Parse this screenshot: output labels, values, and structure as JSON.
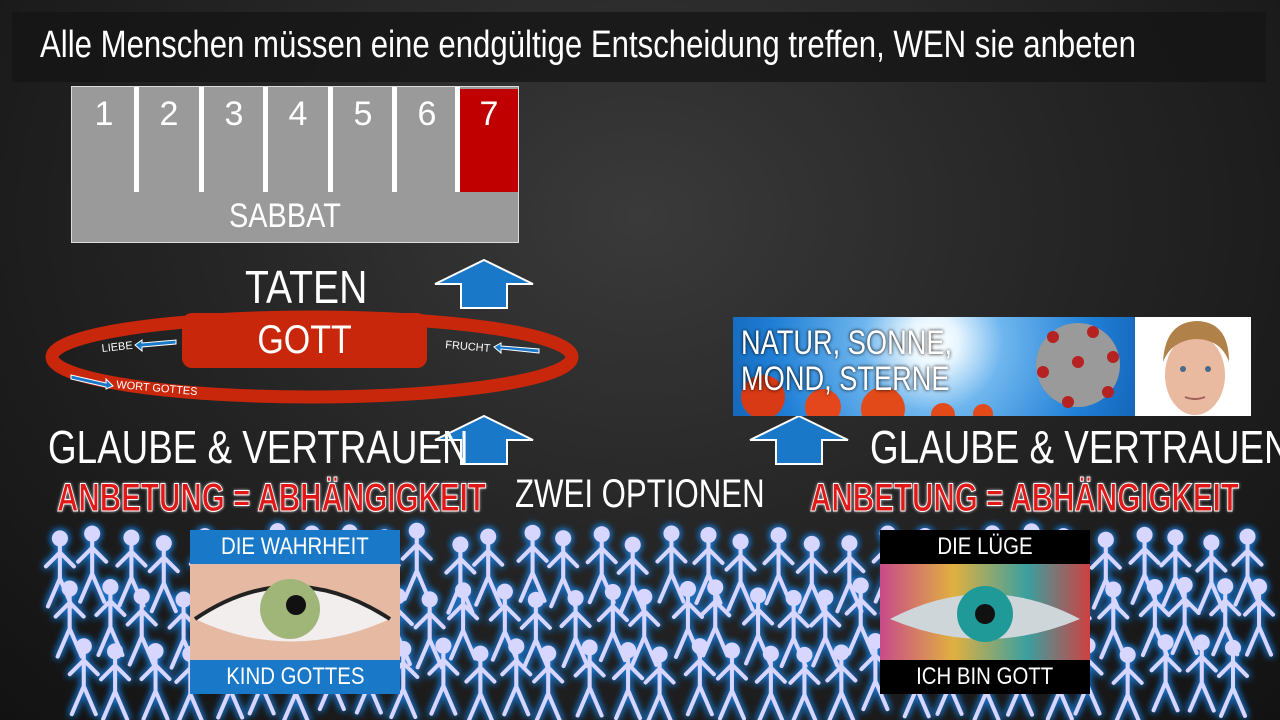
{
  "title": "Alle Menschen müssen eine endgültige Entscheidung treffen, WEN sie anbeten",
  "week": {
    "days": [
      "1",
      "2",
      "3",
      "4",
      "5",
      "6",
      "7"
    ],
    "label": "SABBAT",
    "highlight_day": "7",
    "highlight_color": "#c00000"
  },
  "left": {
    "taten": "TATEN",
    "gott": "GOTT",
    "cycle_labels": {
      "liebe": "LIEBE",
      "frucht": "FRUCHT",
      "wort": "WORT GOTTES"
    },
    "glaube": "GLAUBE & VERTRAUEN",
    "anbetung": "ANBETUNG = ABHÄNGIGKEIT",
    "card": {
      "top": "DIE WAHRHEIT",
      "bottom": "KIND GOTTES"
    }
  },
  "center": {
    "options": "ZWEI OPTIONEN"
  },
  "right": {
    "nature_line1": "NATUR, SONNE,",
    "nature_line2": "MOND, STERNE",
    "glaube": "GLAUBE & VERTRAUEN",
    "anbetung": "ANBETUNG = ABHÄNGIGKEIT",
    "card": {
      "top": "DIE LÜGE",
      "bottom": "ICH BIN GOTT"
    }
  },
  "colors": {
    "arrow_blue": "#1a78c8",
    "ring_red": "#c8270c",
    "crowd_glow": "#1e7fe0",
    "crowd_fill": "#d6d6ff"
  }
}
